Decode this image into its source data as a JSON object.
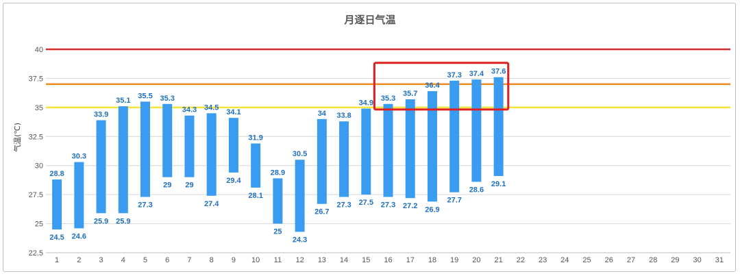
{
  "chart_data": {
    "type": "bar",
    "title": "月逐日气温",
    "ylabel": "气温(℃)",
    "xlabel": "",
    "ylim": [
      22.5,
      40
    ],
    "yticks": [
      "22.5",
      "25",
      "27.5",
      "30",
      "32.5",
      "35",
      "37.5",
      "40"
    ],
    "categories": [
      "1",
      "2",
      "3",
      "4",
      "5",
      "6",
      "7",
      "8",
      "9",
      "10",
      "11",
      "12",
      "13",
      "14",
      "15",
      "16",
      "17",
      "18",
      "19",
      "20",
      "21",
      "22",
      "23",
      "24",
      "25",
      "26",
      "27",
      "28",
      "29",
      "30",
      "31"
    ],
    "series": [
      {
        "high": [
          28.8,
          30.3,
          33.9,
          35.1,
          35.5,
          35.3,
          34.3,
          34.5,
          34.1,
          31.9,
          28.9,
          30.5,
          34,
          33.8,
          34.9,
          35.3,
          35.7,
          36.4,
          37.3,
          37.4,
          37.6
        ],
        "low": [
          24.5,
          24.6,
          25.9,
          25.9,
          27.3,
          29,
          29,
          27.4,
          29.4,
          28.1,
          25,
          24.3,
          26.7,
          27.3,
          27.5,
          27.3,
          27.2,
          26.9,
          27.7,
          28.6,
          29.1
        ],
        "high_labels": [
          "28.8",
          "30.3",
          "33.9",
          "35.1",
          "35.5",
          "35.3",
          "34.3",
          "34.5",
          "34.1",
          "31.9",
          "28.9",
          "30.5",
          "34",
          "33.8",
          "34.9",
          "35.3",
          "35.7",
          "36.4",
          "37.3",
          "37.4",
          "37.6"
        ],
        "low_labels": [
          "24.5",
          "24.6",
          "25.9",
          "25.9",
          "27.3",
          "29",
          "29",
          "27.4",
          "29.4",
          "28.1",
          "25",
          "24.3",
          "26.7",
          "27.3",
          "27.5",
          "27.3",
          "27.2",
          "26.9",
          "27.7",
          "28.6",
          "29.1"
        ]
      }
    ],
    "reference_lines": [
      {
        "value": 40,
        "color": "#d32f2f"
      },
      {
        "value": 37,
        "color": "#f08a1c"
      },
      {
        "value": 35,
        "color": "#f5e53a"
      }
    ],
    "highlight": {
      "from_day": 16,
      "to_day": 21,
      "color": "#e02020"
    },
    "bar_color": "#3a9cf0",
    "label_color": "#1f6fbf",
    "grid": true
  }
}
